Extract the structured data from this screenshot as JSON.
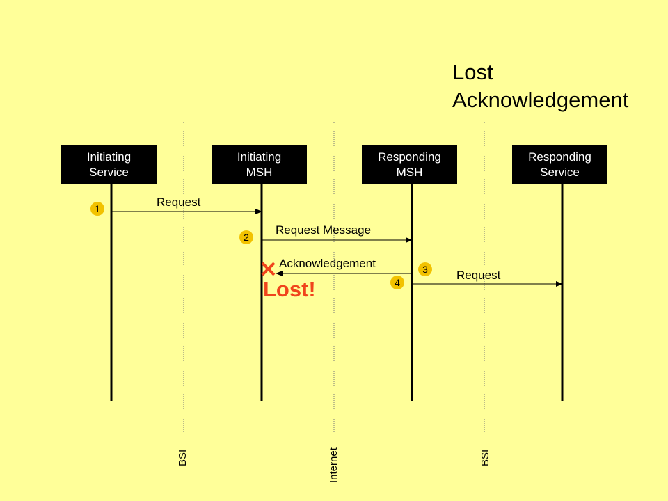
{
  "title": {
    "line1": "Lost",
    "line2": "Acknowledgement"
  },
  "actors": [
    {
      "line1": "Initiating",
      "line2": "Service"
    },
    {
      "line1": "Initiating",
      "line2": "MSH"
    },
    {
      "line1": "Responding",
      "line2": "MSH"
    },
    {
      "line1": "Responding",
      "line2": "Service"
    }
  ],
  "messages": [
    {
      "label": "Request",
      "step": "1"
    },
    {
      "label": "Request Message",
      "step": "2"
    },
    {
      "label": "Acknowledgement",
      "step": "3"
    },
    {
      "label": "Request",
      "step": "4"
    }
  ],
  "lost": {
    "label": "Lost!",
    "icon": "x-mark-icon"
  },
  "boundaries": [
    "BSI",
    "Internet",
    "BSI"
  ],
  "colors": {
    "background": "#FFFF99",
    "actor_box": "#000000",
    "step_badge": "#F2C200",
    "lost": "#F0441C"
  }
}
